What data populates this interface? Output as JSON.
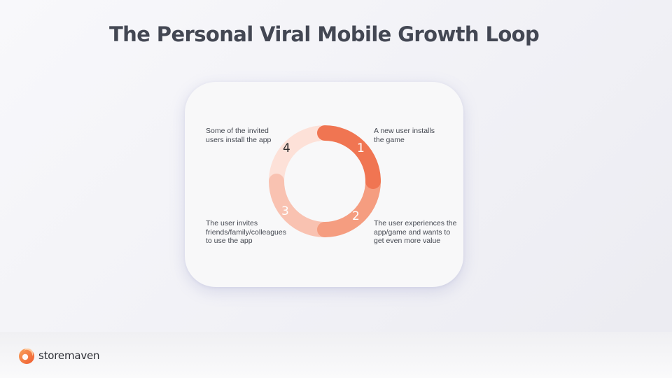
{
  "slide": {
    "title": "The Personal Viral Mobile Growth Loop"
  },
  "loop": {
    "steps": [
      {
        "number": "1",
        "text": "A new user installs the game",
        "color": "#f07552",
        "number_color": "#ffffff"
      },
      {
        "number": "2",
        "text": "The user experiences the app/game and wants to get even more value",
        "color": "#f59d80",
        "number_color": "#ffffff"
      },
      {
        "number": "3",
        "text": "The user invites friends/family/colleagues to use the app",
        "color": "#f9c2b1",
        "number_color": "#ffffff"
      },
      {
        "number": "4",
        "text": "Some of the invited users install the app",
        "color": "#fde1d8",
        "number_color": "#2b2b2b"
      }
    ]
  },
  "brand": {
    "name": "storemaven",
    "logo_icon": "storemaven-logo-icon"
  }
}
